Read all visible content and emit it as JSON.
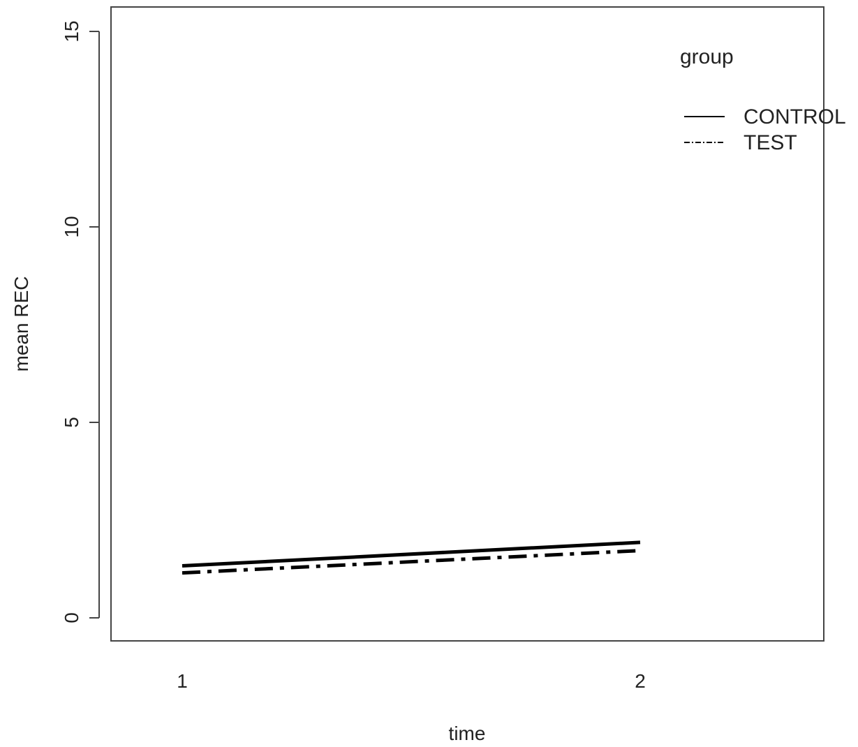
{
  "chart_data": {
    "type": "line",
    "title": "",
    "xlabel": "time",
    "ylabel": "mean REC",
    "x": [
      1,
      2
    ],
    "xticks": [
      "1",
      "2"
    ],
    "yticks": [
      "0",
      "5",
      "10",
      "15"
    ],
    "ylim": [
      0,
      15
    ],
    "grid": false,
    "legend": {
      "title": "group",
      "placement": "top-right"
    },
    "series": [
      {
        "name": "CONTROL",
        "values": [
          1.33,
          1.93
        ],
        "style": "solid",
        "color": "#000000"
      },
      {
        "name": "TEST",
        "values": [
          1.15,
          1.72
        ],
        "style": "dashdot",
        "color": "#000000"
      }
    ]
  }
}
